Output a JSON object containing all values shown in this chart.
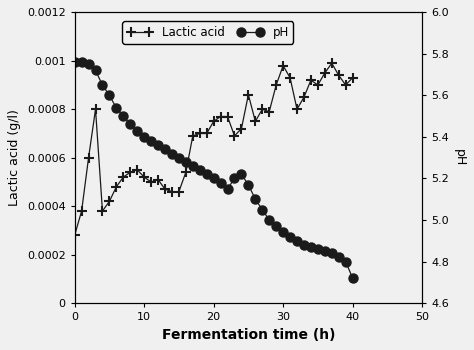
{
  "lactic_acid_time": [
    0,
    1,
    2,
    3,
    4,
    5,
    6,
    7,
    8,
    9,
    10,
    11,
    12,
    13,
    14,
    15,
    16,
    17,
    18,
    19,
    20,
    21,
    22,
    23,
    24,
    25,
    26,
    27,
    28,
    29,
    30,
    31,
    32,
    33,
    34,
    35,
    36,
    37,
    38,
    39,
    40
  ],
  "lactic_acid_values": [
    0.00028,
    0.00038,
    0.0006,
    0.0008,
    0.00038,
    0.00042,
    0.00048,
    0.00052,
    0.00054,
    0.00055,
    0.00052,
    0.0005,
    0.00051,
    0.00047,
    0.00046,
    0.00046,
    0.00054,
    0.00069,
    0.0007,
    0.0007,
    0.00075,
    0.00077,
    0.00077,
    0.00069,
    0.00072,
    0.00086,
    0.00075,
    0.0008,
    0.00079,
    0.0009,
    0.00098,
    0.00093,
    0.0008,
    0.00085,
    0.00092,
    0.0009,
    0.00095,
    0.00099,
    0.00094,
    0.0009,
    0.00093
  ],
  "ph_time": [
    0,
    1,
    2,
    3,
    4,
    5,
    6,
    7,
    8,
    9,
    10,
    11,
    12,
    13,
    14,
    15,
    16,
    17,
    18,
    19,
    20,
    21,
    22,
    23,
    24,
    25,
    26,
    27,
    28,
    29,
    30,
    31,
    32,
    33,
    34,
    35,
    36,
    37,
    38,
    39,
    40
  ],
  "ph_values": [
    5.76,
    5.76,
    5.75,
    5.72,
    5.65,
    5.6,
    5.54,
    5.5,
    5.46,
    5.43,
    5.4,
    5.38,
    5.36,
    5.34,
    5.32,
    5.3,
    5.28,
    5.26,
    5.24,
    5.22,
    5.2,
    5.18,
    5.15,
    5.2,
    5.22,
    5.17,
    5.1,
    5.05,
    5.0,
    4.97,
    4.94,
    4.92,
    4.9,
    4.88,
    4.87,
    4.86,
    4.85,
    4.84,
    4.82,
    4.8,
    4.72
  ],
  "xlabel": "Fermentation time (h)",
  "ylabel_left": "Lactic acid (g/l)",
  "ylabel_right": "pH",
  "xlim": [
    0,
    50
  ],
  "ylim_left": [
    0,
    0.0012
  ],
  "ylim_right": [
    4.6,
    6.0
  ],
  "xticks": [
    0,
    10,
    20,
    30,
    40,
    50
  ],
  "yticks_left": [
    0,
    0.0002,
    0.0004,
    0.0006,
    0.0008,
    0.001,
    0.0012
  ],
  "yticks_left_labels": [
    "0",
    "0.0002",
    "0.0004",
    "0.0006",
    "0.0008",
    "0.001",
    "0.0012"
  ],
  "yticks_right": [
    4.6,
    4.8,
    5.0,
    5.2,
    5.4,
    5.6,
    5.8,
    6.0
  ],
  "line_color": "#1a1a1a",
  "bg_color": "#f0f0f0"
}
